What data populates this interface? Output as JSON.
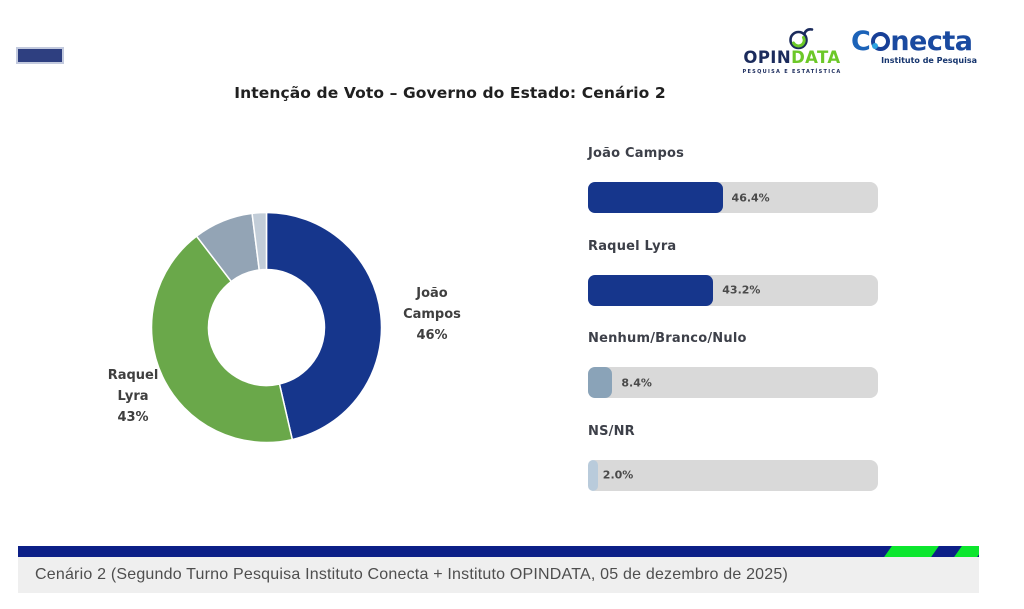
{
  "page": {
    "title": "Intenção de Voto – Governo do Estado: Cenário 2"
  },
  "logos": {
    "opindata": {
      "part1": "OPIN",
      "part2": "DATA",
      "tagline": "PESQUISA E ESTATÍSTICA"
    },
    "conecta": {
      "part1": "C",
      "part2": "necta",
      "tagline": "Instituto de Pesquisa"
    }
  },
  "chart_data": [
    {
      "type": "pie",
      "donut": true,
      "title": "Intenção de Voto – Governo do Estado: Cenário 2",
      "labels": [
        "João Campos",
        "Raquel Lyra",
        "Nenhum/Branco/Nulo",
        "NS/NR"
      ],
      "values": [
        46.4,
        43.2,
        8.4,
        2.0
      ],
      "colors": [
        "#16368c",
        "#6aa84a",
        "#93a4b5",
        "#c2cdd8"
      ],
      "start_angle_deg": 0,
      "direction": "clockwise",
      "callout_labels": [
        "João Campos 46%",
        "Raquel Lyra 43%"
      ]
    },
    {
      "type": "bar",
      "orientation": "horizontal",
      "categories": [
        "João Campos",
        "Raquel Lyra",
        "Nenhum/Branco/Nulo",
        "NS/NR"
      ],
      "values": [
        46.4,
        43.2,
        8.4,
        2.0
      ],
      "value_labels": [
        "46.4%",
        "43.2%",
        "8.4%",
        "2.0%"
      ],
      "bar_colors": [
        "#16368c",
        "#16368c",
        "#8aa3b8",
        "#b9cbdb"
      ],
      "track_color": "#d9d9d9",
      "xlim": [
        0,
        100
      ],
      "grid": false,
      "legend": false
    }
  ],
  "donut_callouts": {
    "right": {
      "line1": "João",
      "line2": "Campos",
      "line3": "46%"
    },
    "left": {
      "line1": "Raquel",
      "line2": "Lyra",
      "line3": "43%"
    }
  },
  "footer": {
    "caption": "Cenário 2 (Segundo Turno Pesquisa Instituto Conecta + Instituto OPINDATA, 05 de dezembro de 2025)"
  },
  "theme": {
    "navy": "#16368c",
    "green": "#6aa84a",
    "stripe_blue": "#0c1f87",
    "stripe_green": "#0ce62e",
    "caption_bg": "#efefef"
  }
}
